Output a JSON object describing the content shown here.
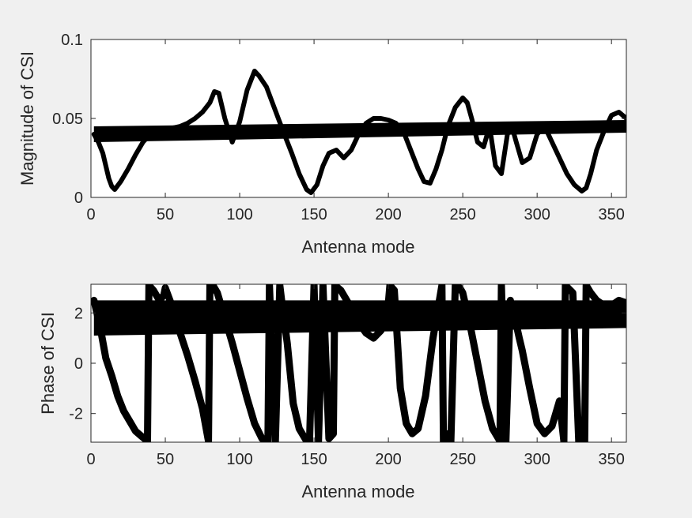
{
  "chart_data": [
    {
      "type": "line",
      "id": "magnitude",
      "xlabel": "Antenna mode",
      "ylabel": "Magnitude of CSI",
      "xlim": [
        0,
        360
      ],
      "ylim": [
        0,
        0.1
      ],
      "xticks": [
        0,
        50,
        100,
        150,
        200,
        250,
        300,
        350
      ],
      "yticks": [
        0,
        0.05,
        0.1
      ],
      "xtick_labels": [
        "0",
        "50",
        "100",
        "150",
        "200",
        "250",
        "300",
        "350"
      ],
      "ytick_labels": [
        "0",
        "0.05",
        "0.1"
      ],
      "grid": false,
      "color": "#000000",
      "band": {
        "x": [
          2,
          360
        ],
        "lower": [
          0.035,
          0.041
        ],
        "upper": [
          0.045,
          0.049
        ]
      },
      "series": [
        {
          "x": [
            2,
            5,
            8,
            10,
            12,
            14,
            16,
            20,
            25,
            30,
            35,
            40,
            45,
            50,
            55,
            60,
            65,
            70,
            75,
            80,
            83,
            86,
            90,
            95,
            100,
            105,
            110,
            113,
            118,
            122,
            126,
            130,
            135,
            140,
            145,
            148,
            152,
            156,
            160,
            165,
            170,
            175,
            180,
            185,
            190,
            195,
            200,
            205,
            210,
            215,
            220,
            224,
            228,
            232,
            236,
            240,
            245,
            250,
            253,
            256,
            260,
            264,
            268,
            272,
            276,
            280,
            283,
            286,
            290,
            295,
            300,
            305,
            310,
            315,
            320,
            325,
            330,
            333,
            336,
            340,
            345,
            350,
            355,
            360
          ],
          "y": [
            0.04,
            0.035,
            0.028,
            0.02,
            0.012,
            0.007,
            0.005,
            0.01,
            0.018,
            0.027,
            0.035,
            0.04,
            0.042,
            0.043,
            0.044,
            0.045,
            0.047,
            0.05,
            0.054,
            0.06,
            0.067,
            0.066,
            0.05,
            0.035,
            0.048,
            0.068,
            0.08,
            0.077,
            0.07,
            0.06,
            0.05,
            0.04,
            0.028,
            0.015,
            0.005,
            0.003,
            0.008,
            0.02,
            0.028,
            0.03,
            0.025,
            0.03,
            0.04,
            0.047,
            0.05,
            0.05,
            0.049,
            0.047,
            0.042,
            0.03,
            0.018,
            0.01,
            0.009,
            0.018,
            0.03,
            0.045,
            0.057,
            0.063,
            0.06,
            0.05,
            0.035,
            0.032,
            0.045,
            0.02,
            0.015,
            0.04,
            0.045,
            0.035,
            0.022,
            0.025,
            0.04,
            0.045,
            0.035,
            0.025,
            0.015,
            0.008,
            0.004,
            0.006,
            0.015,
            0.03,
            0.042,
            0.052,
            0.054,
            0.05
          ]
        }
      ]
    },
    {
      "type": "line",
      "id": "phase",
      "xlabel": "Antenna mode",
      "ylabel": "Phase of CSI",
      "xlim": [
        0,
        360
      ],
      "ylim": [
        -3.14,
        3.14
      ],
      "xticks": [
        0,
        50,
        100,
        150,
        200,
        250,
        300,
        350
      ],
      "yticks": [
        -2,
        0,
        2
      ],
      "xtick_labels": [
        "0",
        "50",
        "100",
        "150",
        "200",
        "250",
        "300",
        "350"
      ],
      "ytick_labels": [
        "-2",
        "0",
        "2"
      ],
      "grid": false,
      "color": "#000000",
      "band": {
        "x": [
          2,
          360
        ],
        "lower": [
          1.1,
          1.4
        ],
        "upper": [
          2.5,
          2.5
        ]
      },
      "series": [
        {
          "x": [
            2,
            6,
            10,
            14,
            18,
            22,
            26,
            30,
            34,
            38,
            39,
            42,
            46,
            49,
            50,
            55,
            60,
            65,
            70,
            75,
            79,
            80,
            82,
            85,
            90,
            95,
            100,
            105,
            110,
            115,
            119,
            120,
            124,
            127,
            128,
            132,
            136,
            140,
            145,
            147,
            150,
            153,
            156,
            160,
            163,
            164,
            168,
            175,
            180,
            185,
            190,
            195,
            200,
            201,
            204,
            208,
            212,
            216,
            220,
            225,
            230,
            236,
            237,
            240,
            242,
            245,
            248,
            250,
            255,
            260,
            265,
            270,
            275,
            276,
            279,
            282,
            285,
            288,
            290,
            295,
            300,
            305,
            310,
            315,
            318,
            319,
            324,
            328,
            332,
            333,
            336,
            340,
            345,
            350,
            355,
            360
          ],
          "y": [
            2.5,
            1.5,
            0.2,
            -0.5,
            -1.3,
            -1.9,
            -2.3,
            -2.7,
            -2.9,
            -3.1,
            3.1,
            2.9,
            2.5,
            2.7,
            3.0,
            2.2,
            1.2,
            0.3,
            -0.7,
            -1.8,
            -3.1,
            3.1,
            3.1,
            2.8,
            1.8,
            0.8,
            -0.3,
            -1.4,
            -2.4,
            -3.0,
            -3.1,
            3.1,
            -3.1,
            3.1,
            2.6,
            0.8,
            -1.6,
            -2.6,
            -3.1,
            -3.1,
            3.1,
            -3.1,
            3.1,
            -3.0,
            -2.8,
            3.1,
            2.9,
            2.2,
            1.6,
            1.2,
            1.0,
            1.3,
            2.4,
            3.1,
            2.9,
            -1.0,
            -2.4,
            -2.8,
            -2.6,
            -1.3,
            1.0,
            3.1,
            -3.1,
            -2.8,
            -3.1,
            3.1,
            3.0,
            2.8,
            1.5,
            0.0,
            -1.5,
            -2.6,
            -3.1,
            3.1,
            -3.1,
            2.5,
            1.8,
            1.0,
            0.5,
            -1.0,
            -2.4,
            -2.8,
            -2.5,
            -1.5,
            -3.1,
            3.1,
            2.8,
            -3.1,
            -3.1,
            3.1,
            2.8,
            2.5,
            2.3,
            2.3,
            2.5,
            2.4
          ]
        }
      ]
    }
  ]
}
